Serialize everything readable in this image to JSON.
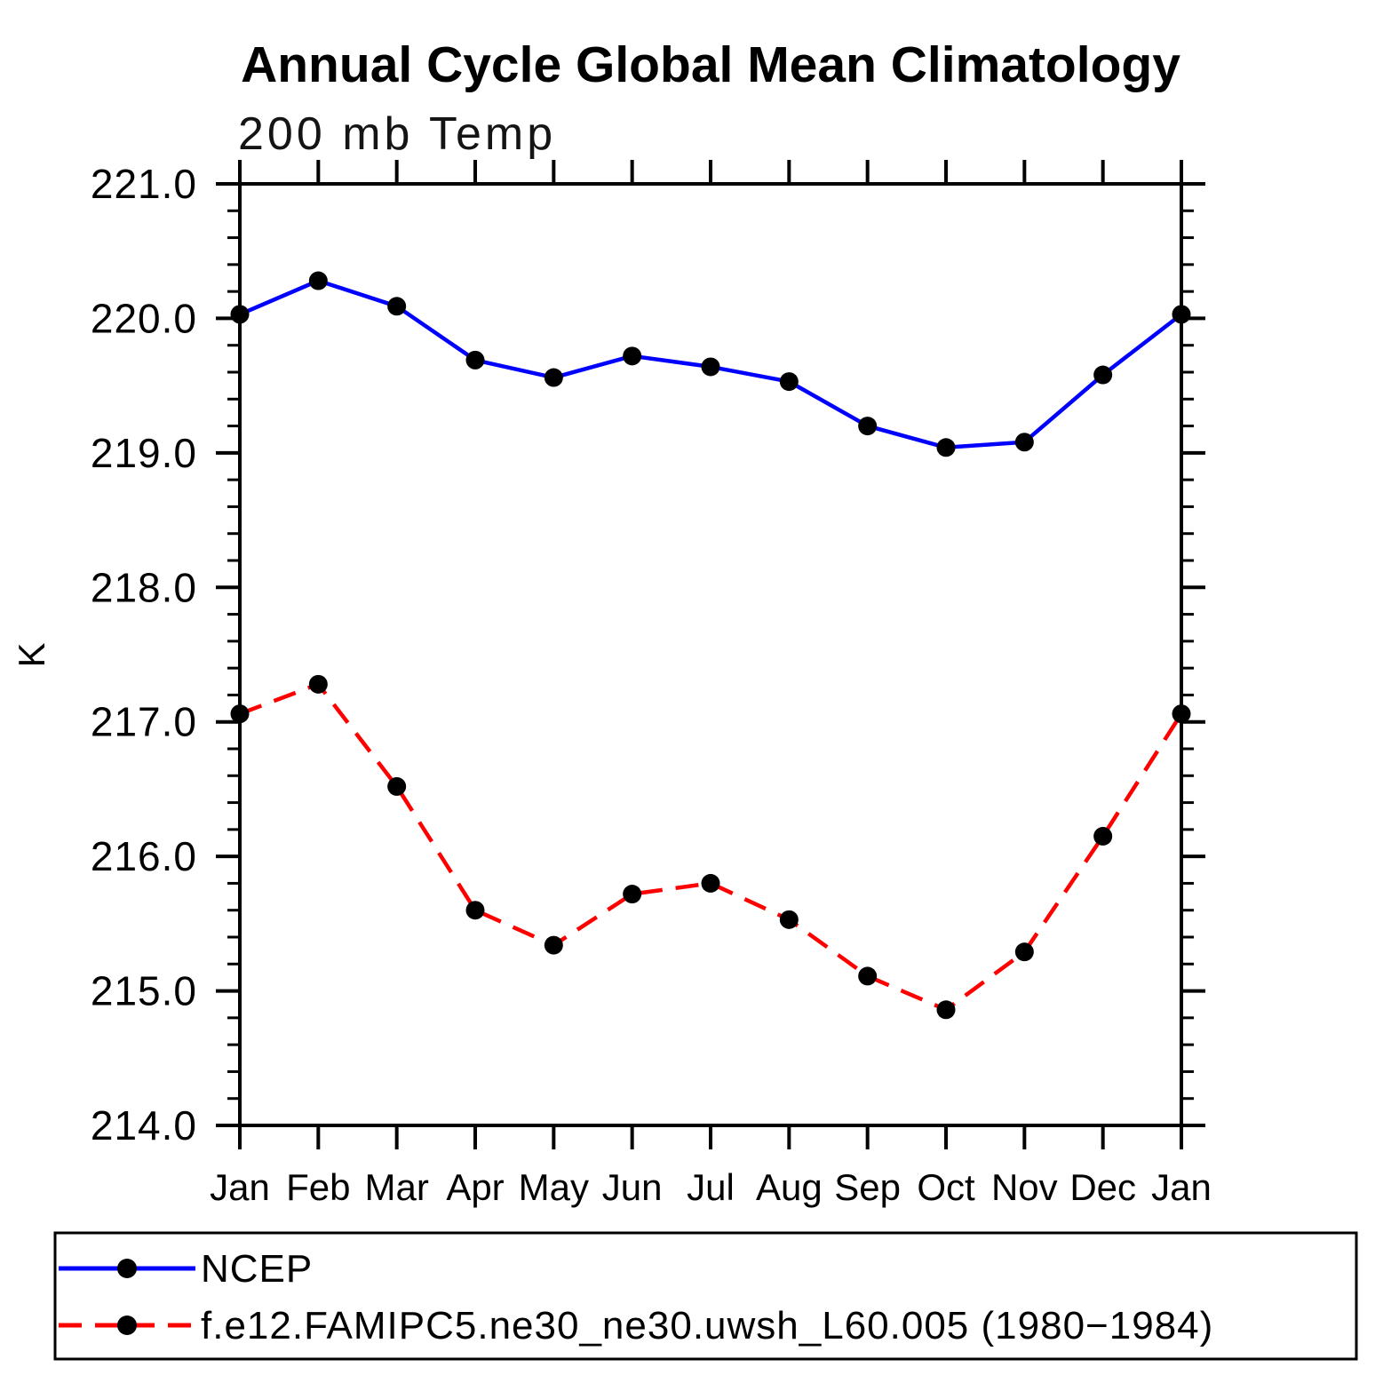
{
  "title": "Annual Cycle Global Mean Climatology",
  "subtitle": "200 mb Temp",
  "y_axis": {
    "label": "K",
    "tick_labels": [
      "221.0",
      "220.0",
      "219.0",
      "218.0",
      "217.0",
      "216.0",
      "215.0",
      "214.0"
    ]
  },
  "x_axis": {
    "tick_labels": [
      "Jan",
      "Feb",
      "Mar",
      "Apr",
      "May",
      "Jun",
      "Jul",
      "Aug",
      "Sep",
      "Oct",
      "Nov",
      "Dec",
      "Jan"
    ]
  },
  "legend": {
    "rows": [
      {
        "label": "NCEP",
        "color": "#0000ff",
        "style": "solid",
        "marker_color": "#000000"
      },
      {
        "label": "f.e12.FAMIPC5.ne30_ne30.uwsh_L60.005 (1980−1984)",
        "color": "#ff0000",
        "style": "dashed",
        "marker_color": "#000000"
      }
    ]
  },
  "colors": {
    "ncep_line": "#0000ff",
    "model_line": "#ff0000",
    "marker": "#000000",
    "axis": "#000000",
    "background": "#ffffff"
  },
  "chart_data": {
    "type": "line",
    "title": "Annual Cycle Global Mean Climatology",
    "subtitle": "200 mb Temp",
    "xlabel": "",
    "ylabel": "K",
    "ylim": [
      214.0,
      221.0
    ],
    "y_major_step": 1.0,
    "y_minor_step": 0.2,
    "grid": false,
    "legend_position": "bottom-left box",
    "x_categories": [
      "Jan",
      "Feb",
      "Mar",
      "Apr",
      "May",
      "Jun",
      "Jul",
      "Aug",
      "Sep",
      "Oct",
      "Nov",
      "Dec",
      "Jan"
    ],
    "y_tick_labels": [
      "221.0",
      "220.0",
      "219.0",
      "218.0",
      "217.0",
      "216.0",
      "215.0",
      "214.0"
    ],
    "series": [
      {
        "name": "NCEP",
        "color": "#0000ff",
        "line_style": "solid",
        "marker": "circle",
        "marker_color": "#000000",
        "values": [
          220.03,
          220.28,
          220.09,
          219.69,
          219.56,
          219.72,
          219.64,
          219.53,
          219.2,
          219.04,
          219.08,
          219.58,
          220.03
        ]
      },
      {
        "name": "f.e12.FAMIPC5.ne30_ne30.uwsh_L60.005 (1980−1984)",
        "color": "#ff0000",
        "line_style": "dashed",
        "marker": "circle",
        "marker_color": "#000000",
        "values": [
          217.06,
          217.28,
          216.52,
          215.6,
          215.34,
          215.72,
          215.8,
          215.53,
          215.11,
          214.86,
          215.29,
          216.15,
          217.06
        ]
      }
    ]
  }
}
